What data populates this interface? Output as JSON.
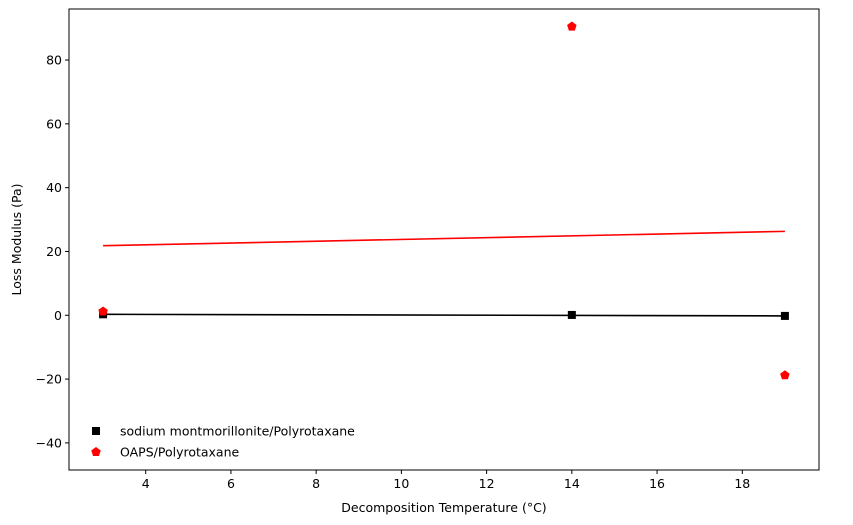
{
  "chart_data": {
    "type": "scatter",
    "title": "",
    "xlabel": "Decomposition Temperature (°C)",
    "ylabel": "Loss Modulus (Pa)",
    "xlim": [
      2.2,
      19.8
    ],
    "ylim": [
      -48.5,
      96
    ],
    "x_ticks": [
      4,
      6,
      8,
      10,
      12,
      14,
      16,
      18
    ],
    "y_ticks": [
      -40,
      -20,
      0,
      20,
      40,
      60,
      80
    ],
    "grid": false,
    "legend_position": "lower-left",
    "series": [
      {
        "name": "sodium montmorillonite/Polyrotaxane",
        "color": "#000000",
        "marker": "square",
        "x": [
          3,
          14,
          19
        ],
        "y": [
          0.3,
          0.1,
          -0.2
        ],
        "fit": {
          "x": [
            3,
            19
          ],
          "y": [
            0.3,
            -0.2
          ]
        }
      },
      {
        "name": "OAPS/Polyrotaxane",
        "color": "#ff0000",
        "marker": "pentagon",
        "x": [
          3,
          14,
          19
        ],
        "y": [
          1.2,
          90.5,
          -18.8
        ],
        "fit": {
          "x": [
            3,
            19
          ],
          "y": [
            21.8,
            26.3
          ]
        }
      }
    ]
  }
}
